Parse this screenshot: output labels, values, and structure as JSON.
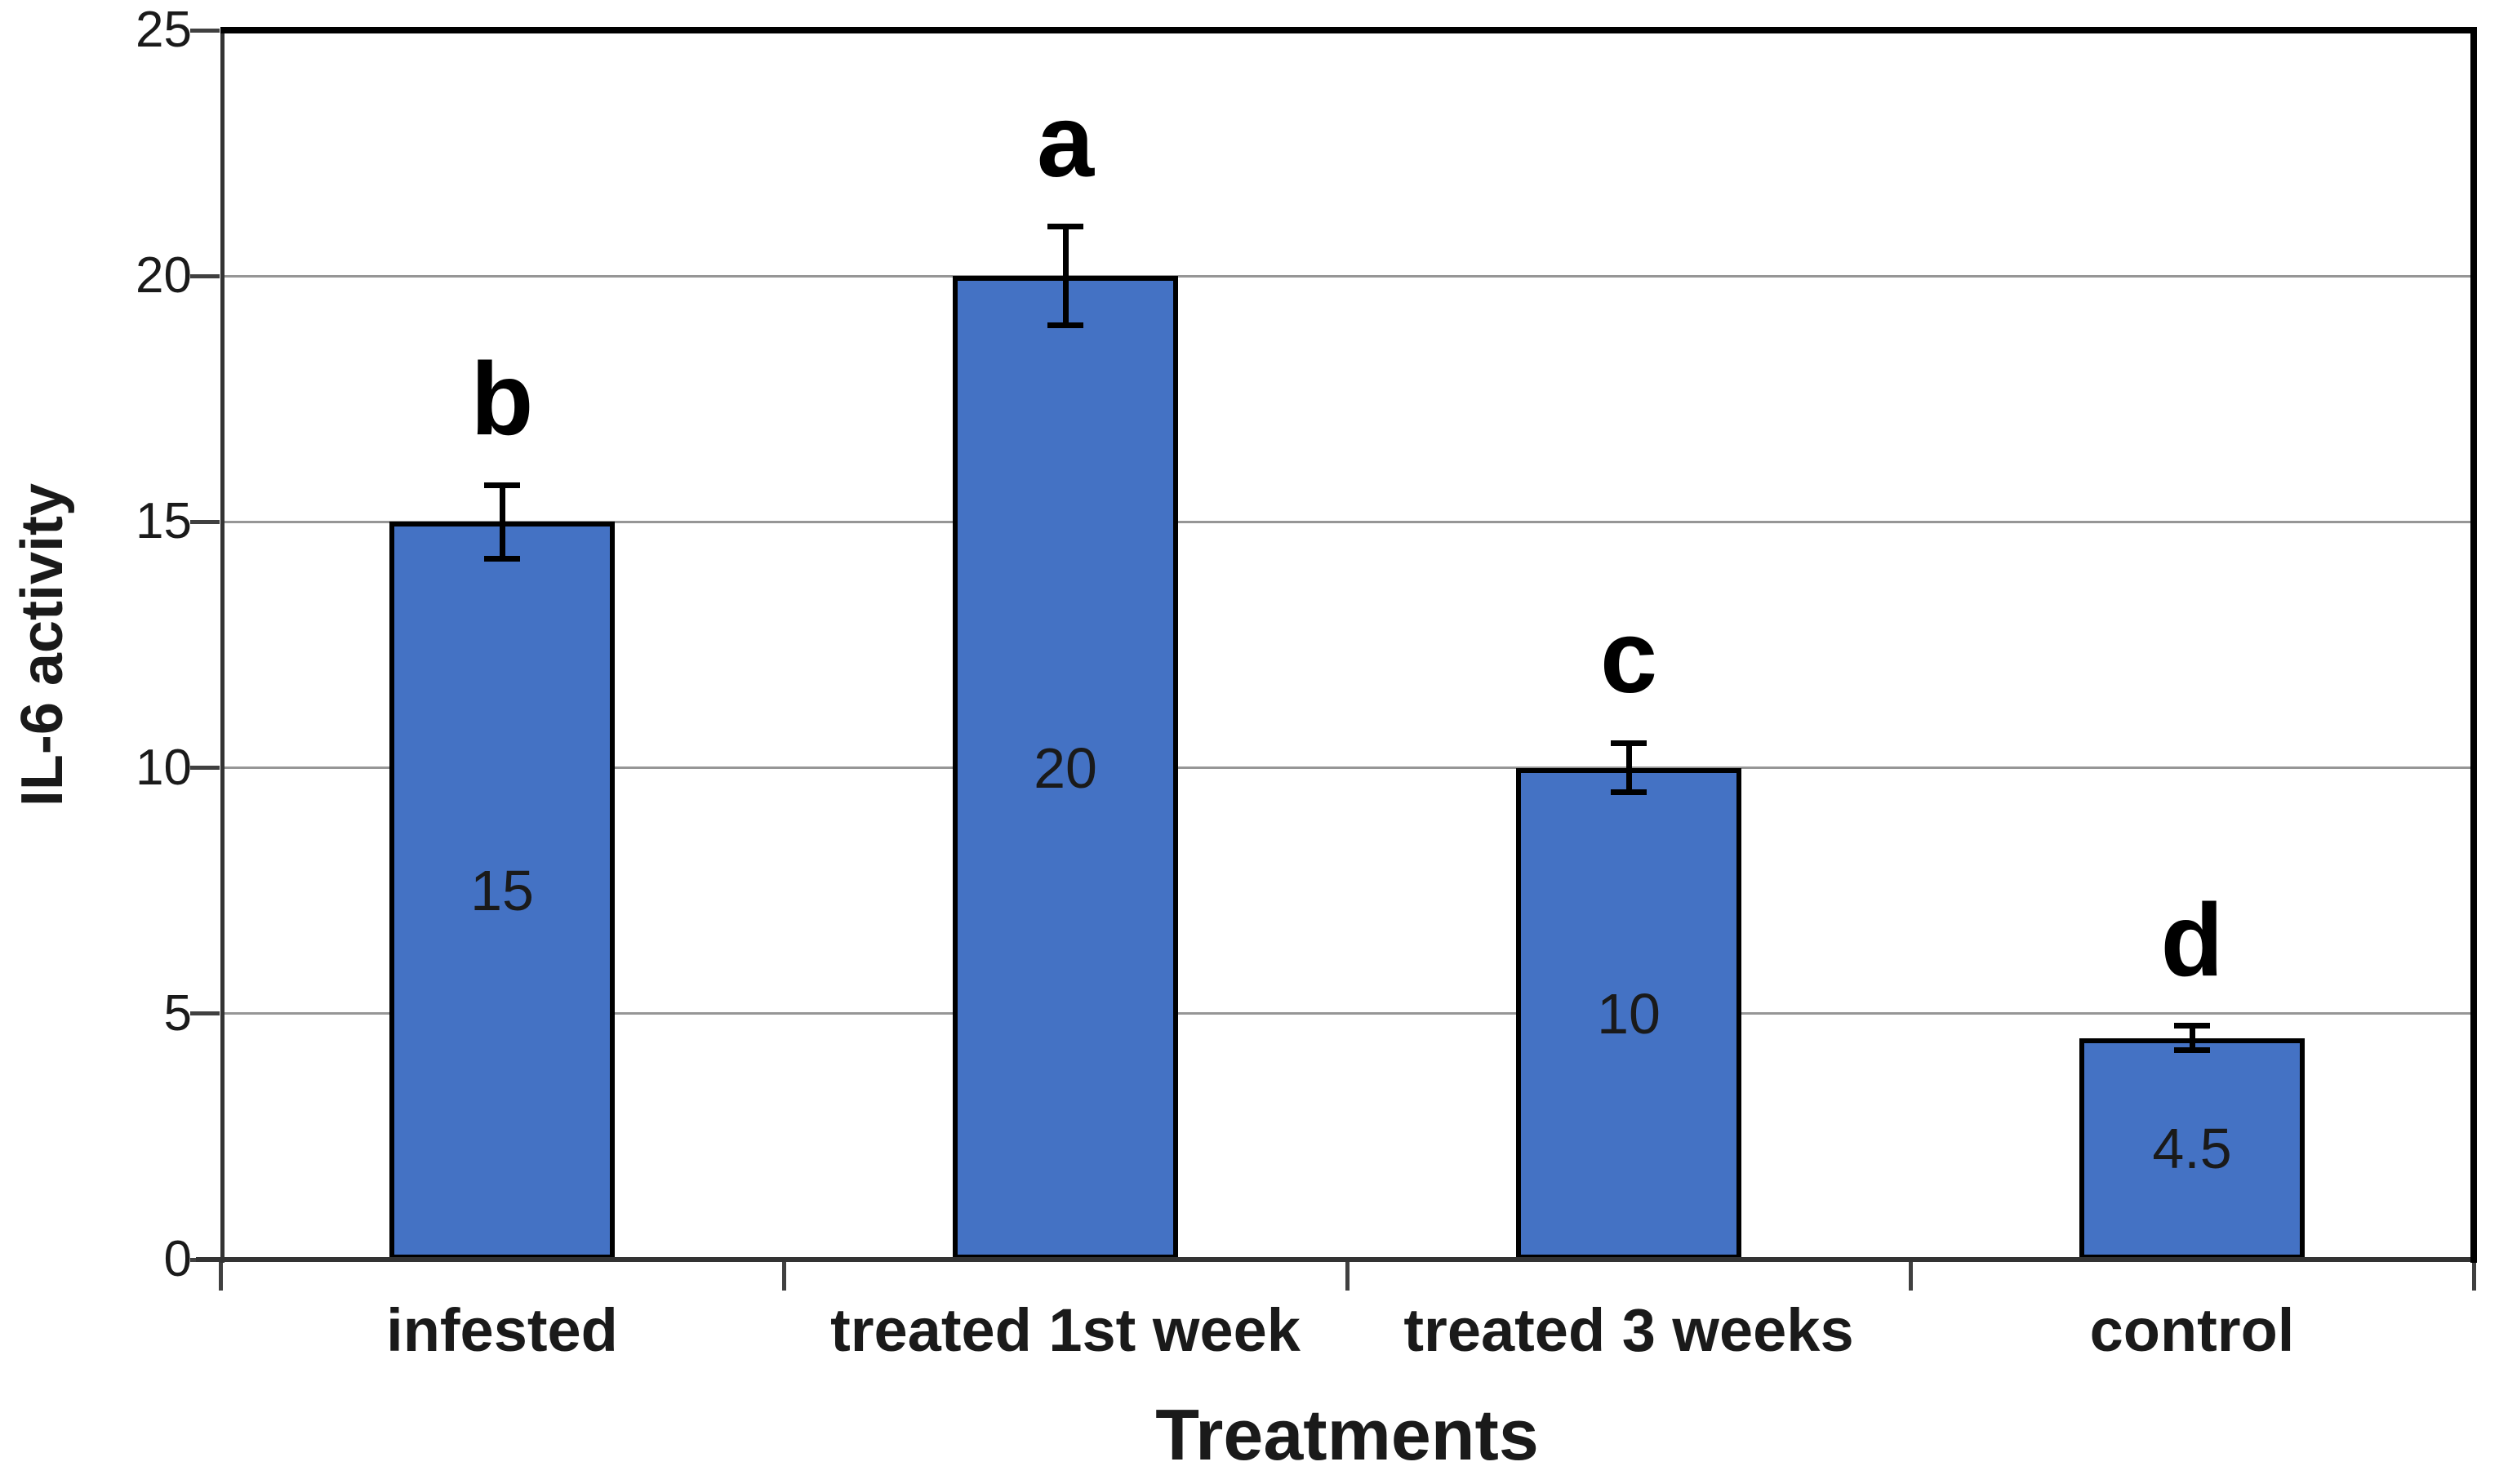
{
  "figure": {
    "y_axis_title": "IL-6 activity",
    "x_axis_title": "Treatments"
  },
  "chart_data": {
    "type": "bar",
    "title": "",
    "xlabel": "Treatments",
    "ylabel": "IL-6 activity",
    "categories": [
      "infested",
      "treated 1st week",
      "treated 3 weeks",
      "control"
    ],
    "values": [
      15,
      20,
      10,
      4.5
    ],
    "value_labels": [
      "15",
      "20",
      "10",
      "4.5"
    ],
    "significance_letters": [
      "b",
      "a",
      "c",
      "d"
    ],
    "error_bars": [
      0.75,
      1.0,
      0.5,
      0.25
    ],
    "ylim": [
      0,
      25
    ],
    "y_ticks": [
      0,
      5,
      10,
      15,
      20,
      25
    ],
    "y_tick_labels": [
      "0",
      "5",
      "10",
      "15",
      "20",
      "25"
    ],
    "grid": true,
    "legend_position": "none",
    "bar_color": "#4472C4",
    "bar_border_color": "#000000",
    "gridline_color": "#969696",
    "axis_color": "#333333",
    "text_color": "#1a1a1a"
  }
}
